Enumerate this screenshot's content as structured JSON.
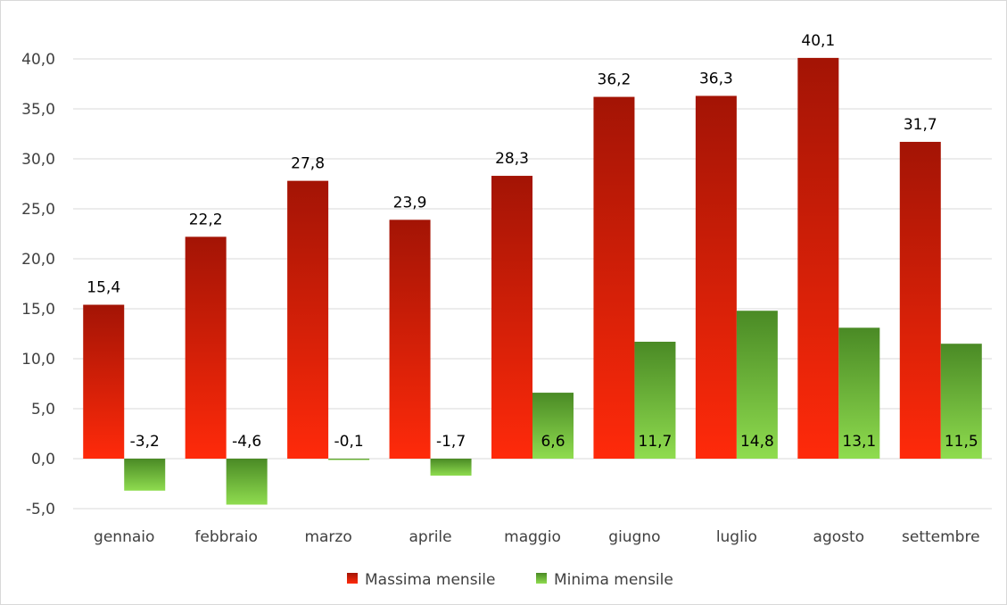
{
  "chart_data": {
    "type": "bar",
    "categories": [
      "gennaio",
      "febbraio",
      "marzo",
      "aprile",
      "maggio",
      "giugno",
      "luglio",
      "agosto",
      "settembre"
    ],
    "series": [
      {
        "name": "Massima mensile",
        "values": [
          15.4,
          22.2,
          27.8,
          23.9,
          28.3,
          36.2,
          36.3,
          40.1,
          31.7
        ],
        "labels": [
          "15,4",
          "22,2",
          "27,8",
          "23,9",
          "28,3",
          "36,2",
          "36,3",
          "40,1",
          "31,7"
        ],
        "color_top": "#a31405",
        "color_bottom": "#ff2a0a"
      },
      {
        "name": "Minima mensile",
        "values": [
          -3.2,
          -4.6,
          -0.1,
          -1.7,
          6.6,
          11.7,
          14.8,
          13.1,
          11.5
        ],
        "labels": [
          "-3,2",
          "-4,6",
          "-0,1",
          "-1,7",
          "6,6",
          "11,7",
          "14,8",
          "13,1",
          "11,5"
        ],
        "color_top": "#4a8a25",
        "color_bottom": "#8fdc4f"
      }
    ],
    "ylim": [
      -5,
      40
    ],
    "yticks": [
      -5,
      0,
      5,
      10,
      15,
      20,
      25,
      30,
      35,
      40
    ],
    "ytick_labels": [
      "-5,0",
      "0,0",
      "5,0",
      "10,0",
      "15,0",
      "20,0",
      "25,0",
      "30,0",
      "35,0",
      "40,0"
    ],
    "grid": true,
    "legend": "bottom",
    "xlabel": "",
    "ylabel": ""
  }
}
